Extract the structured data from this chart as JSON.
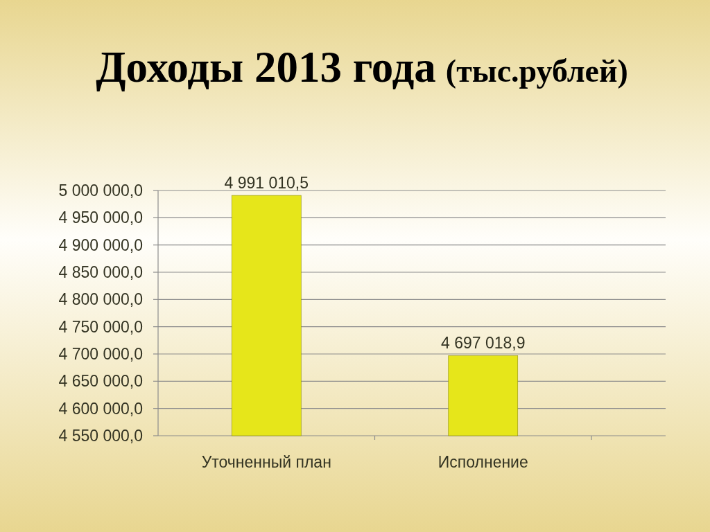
{
  "chart_data": {
    "type": "bar",
    "title": "Доходы 2013 года",
    "subtitle": "(тыс.рублей)",
    "categories": [
      "Уточненный план",
      "Исполнение"
    ],
    "values": [
      4991010.5,
      4697018.9
    ],
    "color": "#e6e61a",
    "value_labels": [
      "4 991 010,5",
      "4 697 018,9"
    ],
    "ylim": [
      4550000,
      5000000
    ],
    "yticks": [
      {
        "value": 4550000,
        "label": "4 550 000,0"
      },
      {
        "value": 4600000,
        "label": "4 600 000,0"
      },
      {
        "value": 4650000,
        "label": "4 650 000,0"
      },
      {
        "value": 4700000,
        "label": "4 700 000,0"
      },
      {
        "value": 4750000,
        "label": "4 750 000,0"
      },
      {
        "value": 4800000,
        "label": "4 800 000,0"
      },
      {
        "value": 4850000,
        "label": "4 850 000,0"
      },
      {
        "value": 4900000,
        "label": "4 900 000,0"
      },
      {
        "value": 4950000,
        "label": "4 950 000,0"
      },
      {
        "value": 5000000,
        "label": "5 000 000,0"
      }
    ],
    "grid": true
  }
}
